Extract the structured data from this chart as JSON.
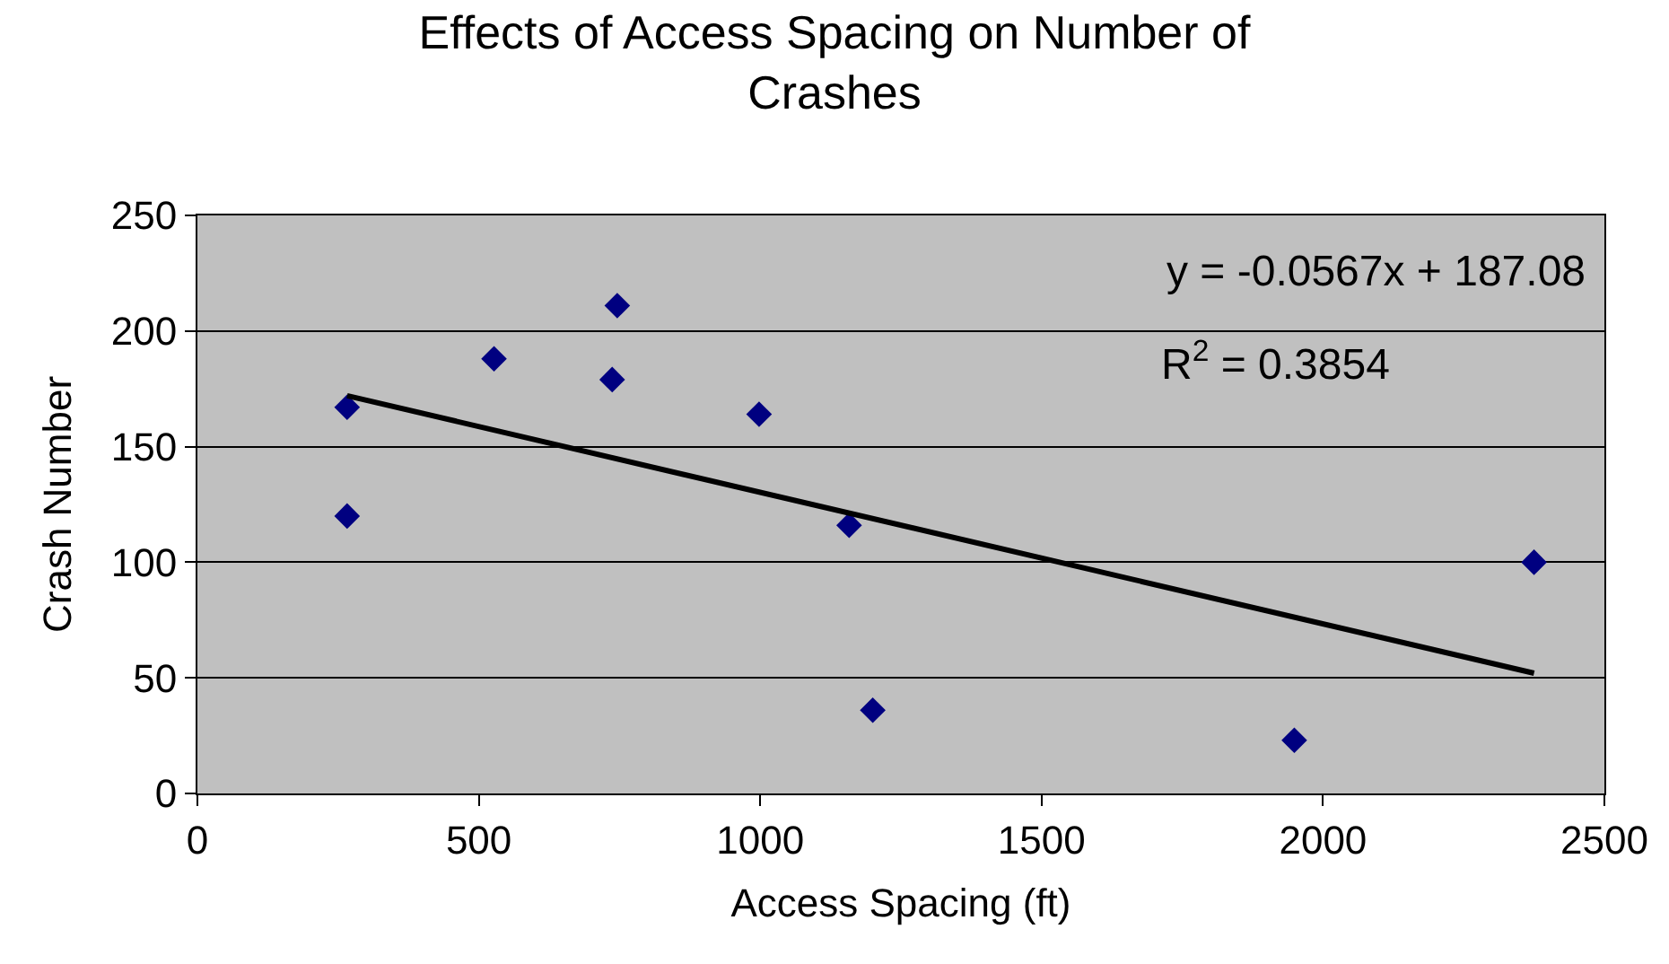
{
  "chart_data": {
    "type": "scatter",
    "title": "Effects of Access Spacing on Number of Crashes",
    "xlabel": "Access Spacing (ft)",
    "ylabel": "Crash Number",
    "xlim": [
      0,
      2500
    ],
    "xticks": [
      0,
      500,
      1000,
      1500,
      2000,
      2500
    ],
    "ylim": [
      0,
      250
    ],
    "yticks": [
      0,
      50,
      100,
      150,
      200,
      250
    ],
    "grid": "y",
    "annotations": [
      "y = -0.0567x + 187.08",
      "R$^{2}$ = 0.3854"
    ],
    "series": [
      {
        "marker": "diamond",
        "color": "#000080",
        "x": [
          266,
          266,
          527,
          746,
          737,
          998,
          1158,
          1200,
          1949,
          2375
        ],
        "values": [
          167,
          120,
          188,
          211,
          179,
          164,
          116,
          36,
          23,
          100
        ]
      },
      {
        "type": "line",
        "marker": "none",
        "line_style": "solid",
        "color": "#000000",
        "x": [
          266,
          2375
        ],
        "values": [
          172,
          52
        ]
      }
    ]
  }
}
